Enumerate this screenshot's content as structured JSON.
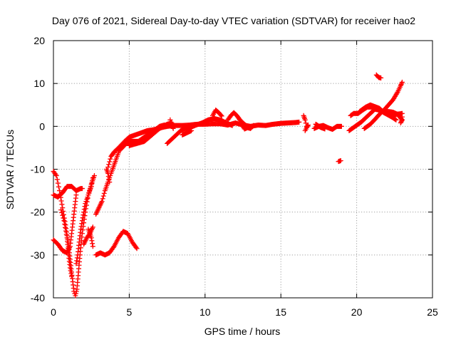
{
  "chart_data": {
    "type": "scatter",
    "title": "Day 076 of 2021, Sidereal Day-to-day VTEC variation (SDTVAR) for receiver hao2",
    "xlabel": "GPS time / hours",
    "ylabel": "SDTVAR / TECUs",
    "xlim": [
      0,
      25
    ],
    "ylim": [
      -40,
      20
    ],
    "x_ticks": [
      0,
      5,
      10,
      15,
      20,
      25
    ],
    "y_ticks": [
      -40,
      -30,
      -20,
      -10,
      0,
      10,
      20
    ],
    "grid": true,
    "marker": "+",
    "color": "#ff0000",
    "segments": [
      [
        [
          0.0,
          -10.5
        ],
        [
          0.2,
          -11.5
        ],
        [
          0.4,
          -15
        ],
        [
          0.6,
          -19
        ],
        [
          0.8,
          -23
        ],
        [
          1.0,
          -28
        ],
        [
          1.1,
          -31
        ],
        [
          1.2,
          -34
        ],
        [
          1.3,
          -37
        ],
        [
          1.35,
          -38.5
        ],
        [
          1.45,
          -39.5
        ],
        [
          1.55,
          -38
        ],
        [
          1.65,
          -34
        ],
        [
          1.75,
          -30
        ],
        [
          1.9,
          -25
        ],
        [
          2.1,
          -20
        ],
        [
          2.3,
          -16
        ],
        [
          2.5,
          -13.5
        ],
        [
          2.7,
          -11.5
        ]
      ],
      [
        [
          0.0,
          -16
        ],
        [
          0.3,
          -16.5
        ],
        [
          0.6,
          -15.5
        ],
        [
          0.9,
          -14
        ],
        [
          1.2,
          -14
        ],
        [
          1.5,
          -15
        ],
        [
          1.8,
          -14.5
        ],
        [
          1.9,
          -14.5
        ]
      ],
      [
        [
          0.0,
          -26.5
        ],
        [
          0.3,
          -27.5
        ],
        [
          0.6,
          -29
        ],
        [
          0.9,
          -29.5
        ],
        [
          1.1,
          -28
        ],
        [
          1.2,
          -25
        ],
        [
          1.3,
          -22
        ],
        [
          1.4,
          -19
        ],
        [
          1.5,
          -16
        ]
      ],
      [
        [
          0.5,
          -19.5
        ],
        [
          0.7,
          -22
        ],
        [
          0.9,
          -26
        ],
        [
          1.0,
          -30
        ],
        [
          1.1,
          -33
        ],
        [
          1.2,
          -35
        ]
      ],
      [
        [
          1.5,
          -32
        ],
        [
          1.6,
          -30
        ],
        [
          1.7,
          -27
        ],
        [
          1.8,
          -24
        ],
        [
          1.9,
          -22
        ],
        [
          2.0,
          -20
        ],
        [
          2.1,
          -18
        ],
        [
          2.3,
          -16
        ],
        [
          2.5,
          -14
        ],
        [
          2.6,
          -12
        ]
      ],
      [
        [
          2.0,
          -27.5
        ],
        [
          2.2,
          -26
        ],
        [
          2.4,
          -25
        ],
        [
          2.6,
          -23.5
        ]
      ],
      [
        [
          2.3,
          -24
        ],
        [
          2.5,
          -26
        ],
        [
          2.6,
          -28
        ]
      ],
      [
        [
          2.8,
          -30
        ],
        [
          3.1,
          -29.5
        ],
        [
          3.4,
          -30
        ],
        [
          3.7,
          -29.5
        ],
        [
          4.0,
          -28
        ],
        [
          4.3,
          -26
        ],
        [
          4.6,
          -24.5
        ],
        [
          4.9,
          -25
        ],
        [
          5.2,
          -27
        ],
        [
          5.5,
          -28.5
        ]
      ],
      [
        [
          2.8,
          -20.5
        ],
        [
          3.0,
          -19
        ],
        [
          3.2,
          -17.5
        ],
        [
          3.4,
          -15
        ],
        [
          3.6,
          -13
        ],
        [
          3.8,
          -11
        ],
        [
          4.0,
          -9
        ],
        [
          4.2,
          -7
        ],
        [
          4.4,
          -5
        ],
        [
          4.7,
          -3.5
        ],
        [
          5.0,
          -3.5
        ],
        [
          5.4,
          -3.5
        ],
        [
          5.8,
          -3.5
        ],
        [
          6.0,
          -3
        ]
      ],
      [
        [
          3.5,
          -10
        ],
        [
          3.6,
          -11
        ],
        [
          3.7,
          -13
        ]
      ],
      [
        [
          3.6,
          -9.5
        ],
        [
          3.8,
          -7
        ],
        [
          4.0,
          -6
        ],
        [
          4.3,
          -5
        ],
        [
          4.7,
          -3.5
        ],
        [
          5.0,
          -2.5
        ],
        [
          5.4,
          -2
        ],
        [
          5.8,
          -1.5
        ],
        [
          6.2,
          -1
        ],
        [
          6.6,
          -0.8
        ],
        [
          7.0,
          -0.4
        ],
        [
          7.5,
          0
        ],
        [
          8.0,
          0.2
        ],
        [
          8.5,
          0.2
        ],
        [
          9.0,
          0.3
        ],
        [
          9.5,
          0.5
        ],
        [
          10.0,
          0.5
        ],
        [
          10.5,
          0.6
        ],
        [
          11.0,
          0.6
        ],
        [
          11.5,
          0.3
        ],
        [
          12.0,
          0.8
        ],
        [
          12.5,
          0.3
        ],
        [
          13.0,
          0
        ],
        [
          13.5,
          0.3
        ],
        [
          14.0,
          0.2
        ],
        [
          14.5,
          0.5
        ],
        [
          15.0,
          0.7
        ],
        [
          15.5,
          0.8
        ],
        [
          16.0,
          0.9
        ],
        [
          16.2,
          1
        ]
      ],
      [
        [
          4.4,
          -5.5
        ],
        [
          4.8,
          -4
        ],
        [
          5.2,
          -4
        ],
        [
          5.6,
          -3.5
        ],
        [
          6.0,
          -2.5
        ],
        [
          6.3,
          -1.8
        ],
        [
          6.7,
          -0.8
        ],
        [
          7.0,
          0
        ],
        [
          7.3,
          0.3
        ],
        [
          7.6,
          0.2
        ],
        [
          8.0,
          0
        ]
      ],
      [
        [
          5.0,
          -4.5
        ],
        [
          5.5,
          -4
        ],
        [
          6.0,
          -3.5
        ],
        [
          6.5,
          -2
        ],
        [
          7.0,
          -0.5
        ],
        [
          7.5,
          0.5
        ],
        [
          7.8,
          0.8
        ]
      ],
      [
        [
          7.5,
          -4
        ],
        [
          7.8,
          -3
        ],
        [
          8.1,
          -2
        ],
        [
          8.4,
          -1
        ],
        [
          8.7,
          -0.5
        ],
        [
          9.0,
          -0.3
        ],
        [
          9.4,
          0.3
        ],
        [
          9.8,
          0.8
        ],
        [
          10.2,
          1.5
        ],
        [
          10.6,
          1.8
        ],
        [
          11.0,
          1.5
        ],
        [
          11.4,
          0.8
        ],
        [
          11.8,
          0.2
        ]
      ],
      [
        [
          8.5,
          -2
        ],
        [
          8.8,
          -1.5
        ],
        [
          9.1,
          -1
        ]
      ],
      [
        [
          7.7,
          1.5
        ],
        [
          7.8,
          0.5
        ],
        [
          7.9,
          -0.5
        ]
      ],
      [
        [
          10.5,
          2.5
        ],
        [
          10.7,
          3.8
        ],
        [
          10.9,
          3.2
        ],
        [
          11.1,
          2.4
        ]
      ],
      [
        [
          11.5,
          1.5
        ],
        [
          11.7,
          2.5
        ],
        [
          11.9,
          3.2
        ],
        [
          12.1,
          2.5
        ],
        [
          12.3,
          1.5
        ]
      ],
      [
        [
          12.4,
          0.5
        ],
        [
          12.6,
          -0.6
        ],
        [
          12.8,
          -0.3
        ],
        [
          13.0,
          -0.5
        ],
        [
          13.2,
          0.2
        ]
      ],
      [
        [
          12.3,
          1.5
        ],
        [
          12.5,
          0.8
        ],
        [
          12.7,
          0.2
        ]
      ],
      [
        [
          16.5,
          2.5
        ],
        [
          16.6,
          1.5
        ],
        [
          16.7,
          0
        ]
      ],
      [
        [
          16.6,
          -1
        ],
        [
          16.7,
          -0.3
        ],
        [
          16.8,
          0.3
        ]
      ],
      [
        [
          17.2,
          -0.5
        ],
        [
          17.5,
          0
        ],
        [
          17.8,
          0.2
        ],
        [
          18.1,
          -0.3
        ],
        [
          18.4,
          -0.7
        ],
        [
          18.7,
          0
        ],
        [
          19.0,
          0
        ]
      ],
      [
        [
          17.3,
          0.5
        ],
        [
          17.6,
          -0.2
        ],
        [
          17.9,
          -0.6
        ]
      ],
      [
        [
          18.8,
          -8.2
        ],
        [
          18.95,
          -8
        ]
      ],
      [
        [
          19.6,
          2.5
        ],
        [
          19.8,
          3
        ],
        [
          20.1,
          3
        ],
        [
          20.4,
          3.8
        ],
        [
          20.7,
          4.5
        ],
        [
          21.0,
          4.5
        ],
        [
          21.3,
          4
        ],
        [
          21.7,
          3.5
        ],
        [
          22.0,
          3.5
        ],
        [
          22.4,
          3.3
        ],
        [
          22.7,
          2.8
        ],
        [
          23.0,
          1.5
        ]
      ],
      [
        [
          19.5,
          -1
        ],
        [
          19.9,
          0
        ],
        [
          20.3,
          1
        ],
        [
          20.6,
          2
        ],
        [
          20.9,
          3
        ],
        [
          21.2,
          4
        ],
        [
          21.5,
          3.8
        ],
        [
          21.8,
          3.2
        ],
        [
          22.1,
          2.6
        ],
        [
          22.4,
          2
        ],
        [
          22.6,
          1.5
        ]
      ],
      [
        [
          20.2,
          3.5
        ],
        [
          20.6,
          4.5
        ],
        [
          20.9,
          5
        ],
        [
          21.2,
          4.6
        ],
        [
          21.5,
          4.2
        ],
        [
          21.8,
          3.2
        ],
        [
          22.2,
          2.5
        ],
        [
          22.6,
          2.8
        ],
        [
          23.0,
          3
        ]
      ],
      [
        [
          20.5,
          -0.5
        ],
        [
          20.9,
          0.5
        ],
        [
          21.2,
          1.6
        ],
        [
          21.5,
          2.8
        ],
        [
          21.8,
          3.8
        ],
        [
          22.1,
          5
        ],
        [
          22.4,
          6.2
        ],
        [
          22.7,
          8
        ],
        [
          22.9,
          9.5
        ],
        [
          23.0,
          10.3
        ]
      ],
      [
        [
          21.3,
          12
        ],
        [
          21.45,
          11.4
        ],
        [
          21.6,
          11.3
        ]
      ],
      [
        [
          22.9,
          0.8
        ],
        [
          23.0,
          1.5
        ],
        [
          23.0,
          2.2
        ]
      ]
    ]
  }
}
